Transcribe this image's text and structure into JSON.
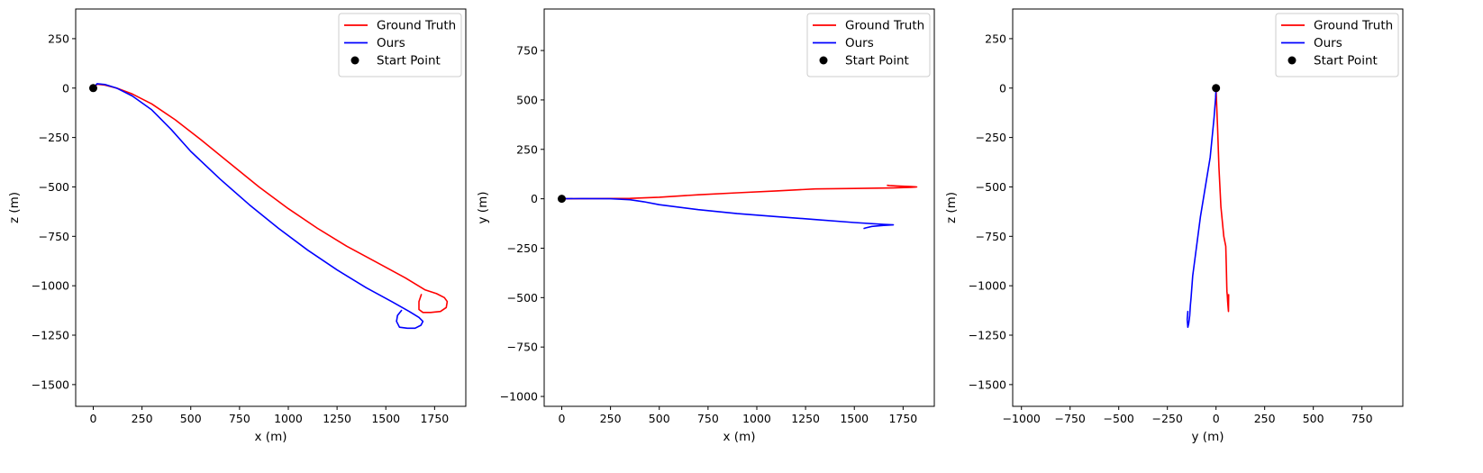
{
  "chart_data": [
    {
      "type": "line",
      "xlabel": "x (m)",
      "ylabel": "z (m)",
      "xlim": [
        -90,
        1910
      ],
      "ylim": [
        -1610,
        400
      ],
      "xticks": [
        0,
        250,
        500,
        750,
        1000,
        1250,
        1500,
        1750
      ],
      "yticks": [
        250,
        0,
        -250,
        -500,
        -750,
        -1000,
        -1250,
        -1500
      ],
      "legend_position": "top-right",
      "series": [
        {
          "name": "Ground Truth",
          "color": "#ff0000",
          "x": [
            0,
            20,
            60,
            120,
            200,
            300,
            420,
            550,
            700,
            850,
            1000,
            1150,
            1300,
            1450,
            1600,
            1700,
            1760,
            1800,
            1815,
            1810,
            1780,
            1730,
            1690,
            1670,
            1670,
            1682
          ],
          "y": [
            0,
            20,
            15,
            0,
            -30,
            -80,
            -160,
            -260,
            -380,
            -500,
            -610,
            -710,
            -800,
            -880,
            -960,
            -1020,
            -1040,
            -1060,
            -1080,
            -1110,
            -1130,
            -1135,
            -1135,
            -1120,
            -1080,
            -1045
          ]
        },
        {
          "name": "Ours",
          "color": "#0000ff",
          "x": [
            0,
            20,
            60,
            120,
            200,
            300,
            400,
            500,
            650,
            800,
            950,
            1100,
            1250,
            1400,
            1530,
            1620,
            1670,
            1690,
            1680,
            1650,
            1610,
            1570,
            1555,
            1560,
            1580
          ],
          "y": [
            0,
            22,
            18,
            0,
            -40,
            -110,
            -210,
            -320,
            -460,
            -590,
            -710,
            -820,
            -920,
            -1010,
            -1080,
            -1130,
            -1160,
            -1180,
            -1200,
            -1215,
            -1215,
            -1210,
            -1180,
            -1150,
            -1125
          ]
        },
        {
          "name": "Start Point",
          "color": "#000000",
          "kind": "marker",
          "x": [
            0
          ],
          "y": [
            0
          ]
        }
      ]
    },
    {
      "type": "line",
      "xlabel": "x (m)",
      "ylabel": "y (m)",
      "xlim": [
        -90,
        1910
      ],
      "ylim": [
        -1050,
        960
      ],
      "xticks": [
        0,
        250,
        500,
        750,
        1000,
        1250,
        1500,
        1750
      ],
      "yticks": [
        750,
        500,
        250,
        0,
        -250,
        -500,
        -750,
        -1000
      ],
      "legend_position": "top-right",
      "series": [
        {
          "name": "Ground Truth",
          "color": "#ff0000",
          "x": [
            0,
            150,
            350,
            500,
            700,
            900,
            1100,
            1300,
            1500,
            1700,
            1790,
            1820,
            1790,
            1720,
            1680,
            1670
          ],
          "y": [
            0,
            1,
            2,
            8,
            20,
            30,
            40,
            50,
            52,
            55,
            58,
            60,
            62,
            65,
            67,
            68
          ]
        },
        {
          "name": "Ours",
          "color": "#0000ff",
          "x": [
            0,
            100,
            250,
            350,
            420,
            500,
            700,
            900,
            1100,
            1300,
            1500,
            1650,
            1700,
            1650,
            1590,
            1560,
            1550
          ],
          "y": [
            0,
            1,
            0,
            -5,
            -15,
            -30,
            -55,
            -75,
            -90,
            -105,
            -120,
            -130,
            -132,
            -135,
            -140,
            -147,
            -150
          ]
        },
        {
          "name": "Start Point",
          "color": "#000000",
          "kind": "marker",
          "x": [
            0
          ],
          "y": [
            0
          ]
        }
      ]
    },
    {
      "type": "line",
      "xlabel": "y (m)",
      "ylabel": "z (m)",
      "xlim": [
        -1045,
        960
      ],
      "ylim": [
        -1610,
        400
      ],
      "xticks": [
        -1000,
        -750,
        -500,
        -250,
        0,
        250,
        500,
        750
      ],
      "yticks": [
        250,
        0,
        -250,
        -500,
        -750,
        -1000,
        -1250,
        -1500
      ],
      "legend_position": "top-right",
      "series": [
        {
          "name": "Ground Truth",
          "color": "#ff0000",
          "x": [
            0,
            2,
            8,
            15,
            25,
            40,
            50,
            53,
            55,
            56,
            58,
            60,
            62,
            64,
            65
          ],
          "y": [
            0,
            -50,
            -200,
            -400,
            -600,
            -750,
            -800,
            -900,
            -1000,
            -1030,
            -1050,
            -1080,
            -1110,
            -1130,
            -1045
          ]
        },
        {
          "name": "Ours",
          "color": "#0000ff",
          "x": [
            0,
            -2,
            -10,
            -30,
            -55,
            -80,
            -100,
            -120,
            -128,
            -132,
            -135,
            -140,
            -145,
            -148,
            -145
          ],
          "y": [
            0,
            -50,
            -150,
            -350,
            -500,
            -650,
            -800,
            -950,
            -1060,
            -1100,
            -1150,
            -1190,
            -1210,
            -1170,
            -1130
          ]
        },
        {
          "name": "Start Point",
          "color": "#000000",
          "kind": "marker",
          "x": [
            0
          ],
          "y": [
            0
          ]
        }
      ]
    }
  ]
}
